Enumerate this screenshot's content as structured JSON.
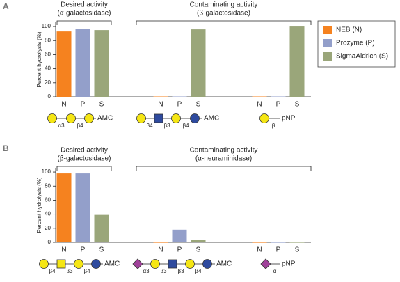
{
  "chart_data": [
    {
      "type": "bar",
      "panel": "A",
      "ylabel": "Percent hydrolysis (%)",
      "ylim": [
        0,
        106
      ],
      "yticks": [
        0,
        20,
        40,
        60,
        80,
        100
      ],
      "groups": [
        {
          "title": "Desired activity",
          "subtitle": "(α-galactosidase)",
          "categories": [
            "N",
            "P",
            "S"
          ],
          "glycan": [
            "α3",
            "β4",
            "AMC"
          ]
        },
        {
          "title": "Contaminating activity",
          "subtitle": "(β-galactosidase)",
          "categories": [
            "N",
            "P",
            "S"
          ],
          "glycan": [
            "β4",
            "β3",
            "β4",
            "AMC"
          ]
        },
        {
          "categories": [
            "N",
            "P",
            "S"
          ],
          "glycan": [
            "β",
            "pNP"
          ]
        }
      ],
      "series": [
        {
          "name": "NEB (N)",
          "color": "#f5821f",
          "values": [
            93,
            0.5,
            0.5
          ]
        },
        {
          "name": "Prozyme (P)",
          "color": "#939fca",
          "values": [
            97,
            0.5,
            0.5
          ]
        },
        {
          "name": "SigmaAldrich (S)",
          "color": "#9aa67a",
          "values": [
            95,
            96,
            100
          ]
        }
      ]
    },
    {
      "type": "bar",
      "panel": "B",
      "ylabel": "Percent hydrolysis (%)",
      "ylim": [
        0,
        106
      ],
      "yticks": [
        0,
        20,
        40,
        60,
        80,
        100
      ],
      "groups": [
        {
          "title": "Desired activity",
          "subtitle": "(β-galactosidase)",
          "categories": [
            "N",
            "P",
            "S"
          ],
          "glycan": [
            "β4",
            "β3",
            "β4",
            "AMC"
          ]
        },
        {
          "title": "Contaminating activity",
          "subtitle": "(α-neuraminidase)",
          "categories": [
            "N",
            "P",
            "S"
          ],
          "glycan": [
            "α3",
            "β3",
            "β3",
            "β4",
            "AMC"
          ]
        },
        {
          "categories": [
            "N",
            "P",
            "S"
          ],
          "glycan": [
            "α",
            "pNP"
          ]
        }
      ],
      "series": [
        {
          "color": "#f5821f",
          "values": [
            98,
            0,
            0
          ]
        },
        {
          "color": "#939fca",
          "values": [
            98,
            18,
            0
          ]
        },
        {
          "color": "#9aa67a",
          "values": [
            39,
            3,
            0
          ]
        }
      ]
    }
  ]
}
